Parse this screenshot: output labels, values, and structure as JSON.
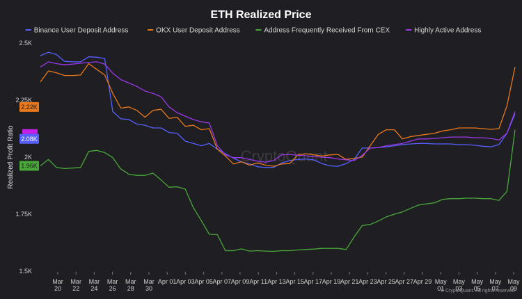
{
  "chart_data": {
    "type": "line",
    "title": "ETH Realized Price",
    "ylabel": "Realized Profit Ratio",
    "ylim": [
      1500,
      2500
    ],
    "y_ticks": [
      "2.5K",
      "2.25K",
      "2K",
      "1.75K",
      "1.5K"
    ],
    "y_tick_values": [
      2500,
      2250,
      2000,
      1750,
      1500
    ],
    "x_tick_labels": [
      [
        "Mar",
        "20"
      ],
      [
        "Mar",
        "22"
      ],
      [
        "Mar",
        "24"
      ],
      [
        "Mar",
        "26"
      ],
      [
        "Mar",
        "28"
      ],
      [
        "Mar",
        "30"
      ],
      [
        "Apr 01"
      ],
      [
        "Apr 03"
      ],
      [
        "Apr 05"
      ],
      [
        "Apr 07"
      ],
      [
        "Apr 09"
      ],
      [
        "Apr 11"
      ],
      [
        "Apr 13"
      ],
      [
        "Apr 15"
      ],
      [
        "Apr 17"
      ],
      [
        "Apr 19"
      ],
      [
        "Apr 21"
      ],
      [
        "Apr 23"
      ],
      [
        "Apr 25"
      ],
      [
        "Apr 27"
      ],
      [
        "Apr 29"
      ],
      [
        "May",
        "01"
      ],
      [
        "May",
        "03"
      ],
      [
        "May",
        "05"
      ],
      [
        "May",
        "07"
      ],
      [
        "May",
        "09"
      ]
    ],
    "legend_position": "top",
    "grid": false,
    "series": [
      {
        "name": "Binance User Deposit Address",
        "color": "#5560ff",
        "values": [
          2445,
          2460,
          2450,
          2420,
          2418,
          2418,
          2440,
          2438,
          2432,
          2200,
          2168,
          2165,
          2145,
          2140,
          2128,
          2128,
          2108,
          2105,
          2070,
          2060,
          2050,
          2060,
          2035,
          2015,
          1995,
          1980,
          1970,
          1958,
          1955,
          1955,
          1975,
          1985,
          1990,
          1992,
          1988,
          1972,
          1962,
          1960,
          1972,
          1990,
          2040,
          2040,
          2042,
          2045,
          2050,
          2055,
          2058,
          2060,
          2060,
          2058,
          2058,
          2058,
          2055,
          2055,
          2052,
          2048,
          2045,
          2055,
          2105,
          2190
        ]
      },
      {
        "name": "OKX User Deposit Address",
        "color": "#e8781a",
        "values": [
          2330,
          2378,
          2370,
          2358,
          2358,
          2360,
          2410,
          2385,
          2360,
          2280,
          2215,
          2220,
          2205,
          2175,
          2205,
          2210,
          2170,
          2175,
          2135,
          2140,
          2120,
          2125,
          2035,
          2005,
          1970,
          1980,
          1965,
          1975,
          1965,
          1960,
          1970,
          1972,
          2010,
          2015,
          2010,
          2005,
          2010,
          2012,
          1990,
          1995,
          2000,
          2050,
          2100,
          2120,
          2120,
          2080,
          2090,
          2095,
          2100,
          2105,
          2115,
          2120,
          2128,
          2128,
          2128,
          2125,
          2122,
          2125,
          2225,
          2395
        ]
      },
      {
        "name": "Address Frequently Received From CEX",
        "color": "#4aa83a",
        "values": [
          1962,
          1990,
          1955,
          1950,
          1952,
          1955,
          2025,
          2030,
          2020,
          1998,
          1948,
          1925,
          1920,
          1920,
          1930,
          1900,
          1868,
          1870,
          1860,
          1780,
          1722,
          1662,
          1660,
          1590,
          1590,
          1598,
          1588,
          1590,
          1588,
          1587,
          1590,
          1590,
          1593,
          1595,
          1597,
          1600,
          1600,
          1600,
          1595,
          1650,
          1700,
          1705,
          1720,
          1738,
          1750,
          1760,
          1775,
          1790,
          1795,
          1800,
          1815,
          1818,
          1818,
          1820,
          1820,
          1818,
          1818,
          1810,
          1850,
          2120
        ]
      },
      {
        "name": "Highly Active Address",
        "color": "#9a38e8",
        "values": [
          2395,
          2418,
          2410,
          2405,
          2408,
          2412,
          2415,
          2418,
          2408,
          2368,
          2340,
          2325,
          2310,
          2290,
          2280,
          2265,
          2220,
          2195,
          2180,
          2165,
          2155,
          2150,
          2050,
          2010,
          1998,
          1998,
          1990,
          1982,
          1978,
          1985,
          2010,
          2012,
          2008,
          2006,
          2002,
          2000,
          1998,
          1992,
          1988,
          1985,
          2008,
          2040,
          2042,
          2050,
          2055,
          2060,
          2070,
          2080,
          2080,
          2082,
          2085,
          2088,
          2088,
          2088,
          2085,
          2085,
          2082,
          2075,
          2105,
          2200
        ]
      }
    ],
    "badges": [
      {
        "label": "2.22K",
        "value": 2220,
        "color": "#e8781a"
      },
      {
        "label": "2.08K",
        "value": 2080,
        "color": "#5560ff"
      },
      {
        "label": "1.96K",
        "value": 1962,
        "color": "#4aa83a"
      }
    ]
  },
  "watermark": "CryptoQuant",
  "copyright": "© CryptoQuant. All rights reserved"
}
